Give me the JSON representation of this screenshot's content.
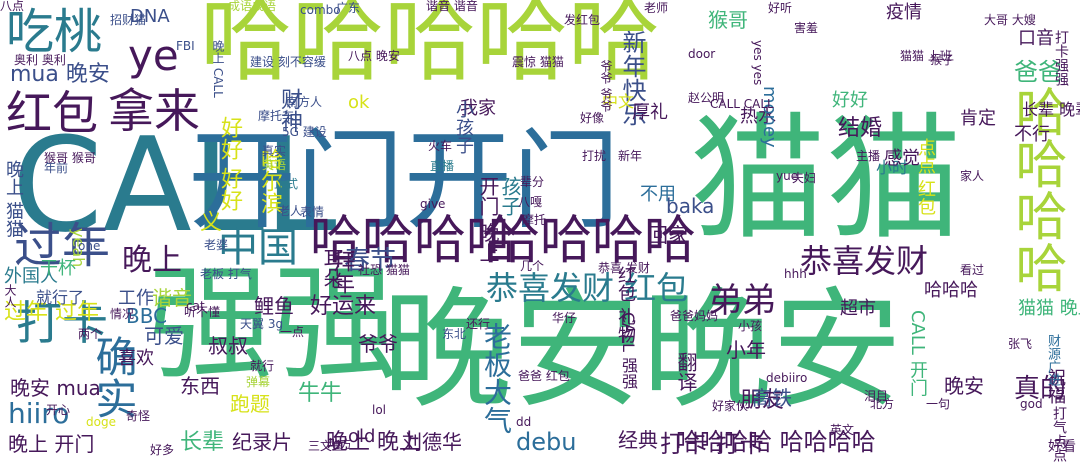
{
  "colors": {
    "purple": "#46185a",
    "indigo": "#3b4f8a",
    "teal": "#2a7b8e",
    "blue": "#2c6e9a",
    "green": "#3fb57a",
    "lime": "#a8d43a",
    "yellow": "#d7e219"
  },
  "words": [
    {
      "text": "哈哈哈哈哈",
      "color": "lime"
    },
    {
      "text": "CALL",
      "color": "teal"
    },
    {
      "text": "开门开门",
      "color": "blue"
    },
    {
      "text": "猫猫",
      "color": "green"
    },
    {
      "text": "强强",
      "color": "green"
    },
    {
      "text": "晚安晚安",
      "color": "green"
    },
    {
      "text": "哈哈哈哈",
      "color": "purple"
    },
    {
      "text": "哈哈哈哈",
      "color": "purple"
    },
    {
      "text": "哈哈哈哈",
      "color": "lime"
    },
    {
      "text": "吃桃",
      "color": "teal"
    },
    {
      "text": "ye",
      "color": "purple"
    },
    {
      "text": "红包",
      "color": "purple"
    },
    {
      "text": "拿来",
      "color": "purple"
    },
    {
      "text": "过年",
      "color": "indigo"
    },
    {
      "text": "打卡",
      "color": "teal"
    },
    {
      "text": "确实",
      "color": "blue"
    },
    {
      "text": "中国",
      "color": "teal"
    },
    {
      "text": "晚上",
      "color": "purple"
    },
    {
      "text": "恭喜发财 红包",
      "color": "teal"
    },
    {
      "text": "恭喜发财",
      "color": "purple"
    },
    {
      "text": "弟弟",
      "color": "purple"
    },
    {
      "text": "猴哥",
      "color": "green"
    },
    {
      "text": "爸爸",
      "color": "green"
    },
    {
      "text": "疫情",
      "color": "purple"
    },
    {
      "text": "新年快乐",
      "color": "indigo"
    },
    {
      "text": "结婚",
      "color": "purple"
    },
    {
      "text": "春节",
      "color": "indigo"
    },
    {
      "text": "拜年",
      "color": "purple"
    },
    {
      "text": "耳朵",
      "color": "purple"
    },
    {
      "text": "回家",
      "color": "purple"
    },
    {
      "text": "baka",
      "color": "indigo"
    },
    {
      "text": "牛牛",
      "color": "green"
    },
    {
      "text": "鲤鱼",
      "color": "purple"
    },
    {
      "text": "好运来",
      "color": "purple"
    },
    {
      "text": "老板大气",
      "color": "blue"
    },
    {
      "text": "朋友",
      "color": "purple"
    },
    {
      "text": "真的",
      "color": "purple"
    },
    {
      "text": "小年",
      "color": "purple"
    },
    {
      "text": "翻译",
      "color": "purple"
    },
    {
      "text": "高铁",
      "color": "indigo"
    },
    {
      "text": "打卡 打卡",
      "color": "purple"
    },
    {
      "text": "哈哈哈哈 哈哈哈哈",
      "color": "purple"
    },
    {
      "text": "纪录片",
      "color": "purple"
    },
    {
      "text": "晚上 晚上",
      "color": "purple"
    },
    {
      "text": "刘德华",
      "color": "purple"
    },
    {
      "text": "debu",
      "color": "blue"
    },
    {
      "text": "经典",
      "color": "purple"
    },
    {
      "text": "长辈",
      "color": "green"
    },
    {
      "text": "跑题",
      "color": "yellow"
    },
    {
      "text": "东西",
      "color": "purple"
    },
    {
      "text": "晚上 开门",
      "color": "purple"
    },
    {
      "text": "hiiro",
      "color": "blue"
    },
    {
      "text": "晚安 mua",
      "color": "purple"
    },
    {
      "text": "叔叔",
      "color": "purple"
    },
    {
      "text": "爷爷",
      "color": "purple"
    },
    {
      "text": "可爱",
      "color": "indigo"
    },
    {
      "text": "喜欢",
      "color": "purple"
    },
    {
      "text": "谐音",
      "color": "lime"
    },
    {
      "text": "BBC",
      "color": "blue"
    },
    {
      "text": "过年 过年",
      "color": "yellow"
    },
    {
      "text": "外国人",
      "color": "teal"
    },
    {
      "text": "晚上 猫猫",
      "color": "indigo"
    },
    {
      "text": "干杯",
      "color": "green"
    },
    {
      "text": "就行了",
      "color": "indigo"
    },
    {
      "text": "工作",
      "color": "indigo"
    },
    {
      "text": "义",
      "color": "yellow"
    },
    {
      "text": "好好 好好",
      "color": "yellow"
    },
    {
      "text": "哈尔滨",
      "color": "yellow"
    },
    {
      "text": "财神",
      "color": "indigo"
    },
    {
      "text": "mua 晚安",
      "color": "indigo"
    },
    {
      "text": "DNA",
      "color": "indigo"
    },
    {
      "text": "ok",
      "color": "yellow"
    },
    {
      "text": "开门 晚上",
      "color": "purple"
    },
    {
      "text": "孩子",
      "color": "teal"
    },
    {
      "text": "old",
      "color": "purple"
    },
    {
      "text": "yeah",
      "color": "lime"
    },
    {
      "text": "我家",
      "color": "purple"
    },
    {
      "text": "中文",
      "color": "yellow"
    },
    {
      "text": "厚礼",
      "color": "purple"
    },
    {
      "text": "热水",
      "color": "purple"
    },
    {
      "text": "money",
      "color": "blue"
    },
    {
      "text": "超市",
      "color": "purple"
    },
    {
      "text": "红包 礼物",
      "color": "purple"
    },
    {
      "text": "小时",
      "color": "teal"
    },
    {
      "text": "不用",
      "color": "blue"
    },
    {
      "text": "点点 红包",
      "color": "yellow"
    },
    {
      "text": "感觉",
      "color": "purple"
    },
    {
      "text": "肯定",
      "color": "purple"
    },
    {
      "text": "好好",
      "color": "green"
    },
    {
      "text": "不行",
      "color": "purple"
    },
    {
      "text": "口音",
      "color": "purple"
    },
    {
      "text": "长辈 晚辈",
      "color": "purple"
    },
    {
      "text": "猫猫 晚上",
      "color": "green"
    },
    {
      "text": "哈哈哈",
      "color": "purple"
    },
    {
      "text": "CALL 开门",
      "color": "green"
    },
    {
      "text": "祝福",
      "color": "purple"
    },
    {
      "text": "晚安",
      "color": "purple"
    },
    {
      "text": "小孩子",
      "color": "indigo"
    },
    {
      "text": "CALL 强强",
      "color": "purple"
    },
    {
      "text": "打卡强强",
      "color": "purple"
    },
    {
      "text": "好看",
      "color": "purple"
    },
    {
      "text": "打气点点",
      "color": "purple"
    },
    {
      "text": "财源广进",
      "color": "blue"
    },
    {
      "text": "摩托车",
      "color": "indigo"
    },
    {
      "text": "南方人",
      "color": "indigo"
    },
    {
      "text": "建设 刻不容缓",
      "color": "indigo"
    },
    {
      "text": "5G 建设",
      "color": "indigo"
    },
    {
      "text": "真实",
      "color": "indigo"
    },
    {
      "text": "英语",
      "color": "lime"
    },
    {
      "text": "正式",
      "color": "teal"
    },
    {
      "text": "老人",
      "color": "indigo"
    },
    {
      "text": "表情",
      "color": "indigo"
    },
    {
      "text": "老婆",
      "color": "indigo"
    },
    {
      "text": "年前",
      "color": "indigo"
    },
    {
      "text": "猴哥 猴哥",
      "color": "purple"
    },
    {
      "text": "one",
      "color": "indigo"
    },
    {
      "text": "老板 打气",
      "color": "indigo"
    },
    {
      "text": "招财猫",
      "color": "indigo"
    },
    {
      "text": "FBI",
      "color": "indigo"
    },
    {
      "text": "奥利 奥利",
      "color": "purple"
    },
    {
      "text": "晚上 CALL",
      "color": "indigo"
    },
    {
      "text": "成语成语",
      "color": "lime"
    },
    {
      "text": "combo",
      "color": "indigo"
    },
    {
      "text": "广东",
      "color": "indigo"
    },
    {
      "text": "谐音 谐音",
      "color": "purple"
    },
    {
      "text": "八点 晚安",
      "color": "purple"
    },
    {
      "text": "震惊 猫猫",
      "color": "purple"
    },
    {
      "text": "发红包",
      "color": "purple"
    },
    {
      "text": "老师",
      "color": "purple"
    },
    {
      "text": "好听",
      "color": "purple"
    },
    {
      "text": "害羞",
      "color": "purple"
    },
    {
      "text": "大哥 大嫂",
      "color": "purple"
    },
    {
      "text": "猴子",
      "color": "purple"
    },
    {
      "text": "猫猫 上班",
      "color": "purple"
    },
    {
      "text": "爷爷 爷爷",
      "color": "purple"
    },
    {
      "text": "door",
      "color": "purple"
    },
    {
      "text": "yes yes",
      "color": "purple"
    },
    {
      "text": "CALL CALL",
      "color": "purple"
    },
    {
      "text": "赵公明",
      "color": "purple"
    },
    {
      "text": "一点",
      "color": "purple"
    },
    {
      "text": "天翼 3g",
      "color": "indigo"
    },
    {
      "text": "东北",
      "color": "indigo"
    },
    {
      "text": "还行",
      "color": "purple"
    },
    {
      "text": "小孩",
      "color": "purple"
    },
    {
      "text": "北方",
      "color": "purple"
    },
    {
      "text": "张飞",
      "color": "purple"
    },
    {
      "text": "debiiro",
      "color": "purple"
    },
    {
      "text": "一句",
      "color": "purple"
    },
    {
      "text": "就行",
      "color": "purple"
    },
    {
      "text": "弹幕",
      "color": "lime"
    },
    {
      "text": "cat",
      "color": "purple"
    },
    {
      "text": "hhh",
      "color": "purple"
    },
    {
      "text": "lol",
      "color": "purple"
    },
    {
      "text": "dd",
      "color": "purple"
    },
    {
      "text": "三文鱼",
      "color": "purple"
    },
    {
      "text": "地方",
      "color": "purple"
    },
    {
      "text": "好多",
      "color": "purple"
    },
    {
      "text": "doge",
      "color": "yellow"
    },
    {
      "text": "奇怪",
      "color": "purple"
    },
    {
      "text": "两个",
      "color": "purple"
    },
    {
      "text": "听不懂",
      "color": "purple"
    },
    {
      "text": "情况",
      "color": "purple"
    },
    {
      "text": "大人",
      "color": "purple"
    },
    {
      "text": "开心",
      "color": "purple"
    },
    {
      "text": "社恐 猫猫",
      "color": "purple"
    },
    {
      "text": "恭喜 发财",
      "color": "purple"
    },
    {
      "text": "八嘎",
      "color": "purple"
    },
    {
      "text": "几个",
      "color": "purple"
    },
    {
      "text": "直播",
      "color": "teal"
    },
    {
      "text": "打扰",
      "color": "purple"
    },
    {
      "text": "新年",
      "color": "purple"
    },
    {
      "text": "辈分",
      "color": "purple"
    },
    {
      "text": "摩托",
      "color": "purple"
    },
    {
      "text": "火车",
      "color": "purple"
    },
    {
      "text": "give",
      "color": "purple"
    },
    {
      "text": "好像",
      "color": "purple"
    },
    {
      "text": "夫妇",
      "color": "purple"
    },
    {
      "text": "主播",
      "color": "purple"
    },
    {
      "text": "看过",
      "color": "purple"
    },
    {
      "text": "家人",
      "color": "purple"
    },
    {
      "text": "yue",
      "color": "purple"
    },
    {
      "text": "泪目",
      "color": "purple"
    },
    {
      "text": "god",
      "color": "purple"
    },
    {
      "text": "英文",
      "color": "purple"
    },
    {
      "text": "好家伙",
      "color": "purple"
    },
    {
      "text": "爸爸妈妈",
      "color": "purple"
    },
    {
      "text": "华仔",
      "color": "purple"
    },
    {
      "text": "爸爸 红包",
      "color": "purple"
    },
    {
      "text": "八点",
      "color": "purple"
    }
  ]
}
